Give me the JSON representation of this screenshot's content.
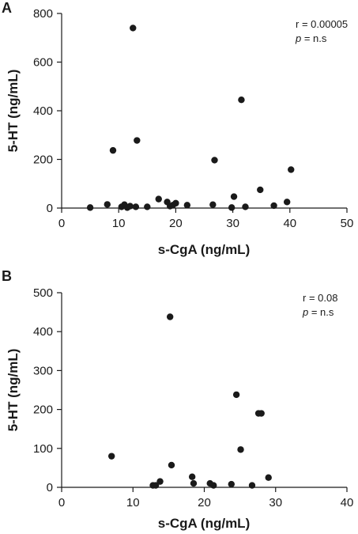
{
  "chart_data": [
    {
      "type": "scatter",
      "panel_label": "A",
      "xlabel": "s-CgA (ng/mL)",
      "ylabel": "5-HT (ng/mL)",
      "xlim": [
        0,
        50
      ],
      "ylim": [
        0,
        800
      ],
      "xticks": [
        0,
        10,
        20,
        30,
        40,
        50
      ],
      "yticks": [
        0,
        200,
        400,
        600,
        800
      ],
      "annotation": {
        "r": "r = 0.00005",
        "p_symbol": "p",
        "p_value": " = n.s"
      },
      "x": [
        5,
        8,
        9,
        10.5,
        11,
        11.5,
        12,
        12.5,
        13,
        13.2,
        15,
        17,
        18.5,
        19,
        19.5,
        20,
        22,
        26.5,
        26.8,
        29.8,
        30.2,
        31.5,
        32.2,
        34.8,
        37.2,
        39.5,
        40.2
      ],
      "y": [
        2,
        15,
        237,
        5,
        14,
        2,
        8,
        740,
        5,
        278,
        5,
        37,
        25,
        8,
        12,
        20,
        12,
        14,
        197,
        2,
        47,
        445,
        5,
        75,
        10,
        25,
        158
      ],
      "legend": "none",
      "grid": false
    },
    {
      "type": "scatter",
      "panel_label": "B",
      "xlabel": "s-CgA (ng/mL)",
      "ylabel": "5-HT (ng/mL)",
      "xlim": [
        0,
        40
      ],
      "ylim": [
        0,
        500
      ],
      "xticks": [
        0,
        10,
        20,
        30,
        40
      ],
      "yticks": [
        0,
        100,
        200,
        300,
        400,
        500
      ],
      "annotation": {
        "r": "r = 0.08",
        "p_symbol": "p",
        "p_value": " = n.s"
      },
      "x": [
        7,
        12.8,
        13.2,
        13.8,
        15.2,
        15.4,
        18.3,
        18.5,
        20.8,
        21.3,
        23.8,
        24.5,
        25.1,
        26.7,
        27.6,
        28,
        29
      ],
      "y": [
        80,
        5,
        5,
        15,
        438,
        57,
        27,
        10,
        10,
        5,
        8,
        238,
        97,
        5,
        190,
        190,
        25
      ],
      "legend": "none",
      "grid": false
    }
  ]
}
